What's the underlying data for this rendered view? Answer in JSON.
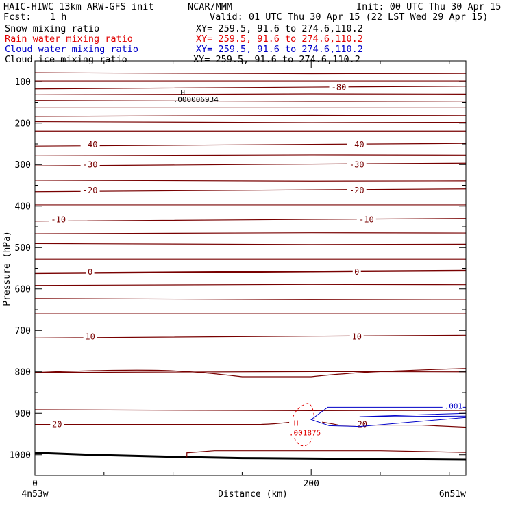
{
  "header": {
    "model": "HAIC-HIWC 13km ARW-GFS init",
    "org": "NCAR/MMM",
    "init": "Init: 00 UTC Thu 30 Apr 15",
    "fcst_label": "Fcst:",
    "fcst_value": "1 h",
    "valid": "Valid: 01 UTC Thu 30 Apr 15 (22 LST Wed 29 Apr 15)"
  },
  "fields": [
    {
      "name": "Snow mixing ratio",
      "xy": "XY= 259.5, 91.6 to 274.6,110.2",
      "color": "#000000"
    },
    {
      "name": "Rain water mixing ratio",
      "xy": "XY= 259.5, 91.6 to 274.6,110.2",
      "color": "#e00000"
    },
    {
      "name": "Cloud water mixing ratio",
      "xy": "XY= 259.5, 91.6 to 274.6,110.2",
      "color": "#0000c8"
    },
    {
      "name": "Cloud ice mixing ratio",
      "xy": "XY= 259.5, 91.6 to 274.6,110.2",
      "color": "#000000"
    }
  ],
  "chart_data": {
    "type": "cross-section contour",
    "xlabel": "Distance (km)",
    "ylabel": "Pressure (hPa)",
    "xlim": [
      0,
      312
    ],
    "ylim": [
      1050,
      50
    ],
    "x_ticks": [
      0,
      200
    ],
    "y_ticks": [
      100,
      200,
      300,
      400,
      500,
      600,
      700,
      800,
      900,
      1000
    ],
    "x_minor_step": 50,
    "y_minor_step": 50,
    "endpoint_labels": {
      "left": "4n53w",
      "right": "6n51w"
    },
    "temperature_contours": {
      "color": "#780000",
      "levels": [
        {
          "level": -80,
          "label": "-80",
          "pressure": 114
        },
        {
          "level": -40,
          "label": "-40",
          "pressure": 252
        },
        {
          "level": -30,
          "label": "-30",
          "pressure": 300
        },
        {
          "level": -20,
          "label": "-20",
          "pressure": 362
        },
        {
          "level": -10,
          "label": "-10",
          "pressure": 433
        },
        {
          "level": 0,
          "label": "0",
          "pressure": 559
        },
        {
          "level": 10,
          "label": "10",
          "pressure": 715
        },
        {
          "level": 20,
          "label": "20",
          "pressure": 927
        }
      ],
      "extra_isotherm_pressures": [
        80,
        98,
        130,
        147,
        163,
        182,
        198,
        219,
        277,
        339,
        397,
        465,
        492,
        528,
        590,
        625,
        660,
        800,
        893
      ]
    },
    "snow_max": {
      "label": "H",
      "value": ".000006934",
      "x": 107,
      "pressure": 138
    },
    "rain_max": {
      "label": "H",
      "value": ".001875",
      "x": 194,
      "pressure": 950
    },
    "cloud_water_contour": {
      "label": ".001",
      "pressures": [
        882,
        900
      ]
    },
    "terrain": {
      "surface_pressure_left": 995,
      "surface_pressure_right": 1012
    }
  }
}
